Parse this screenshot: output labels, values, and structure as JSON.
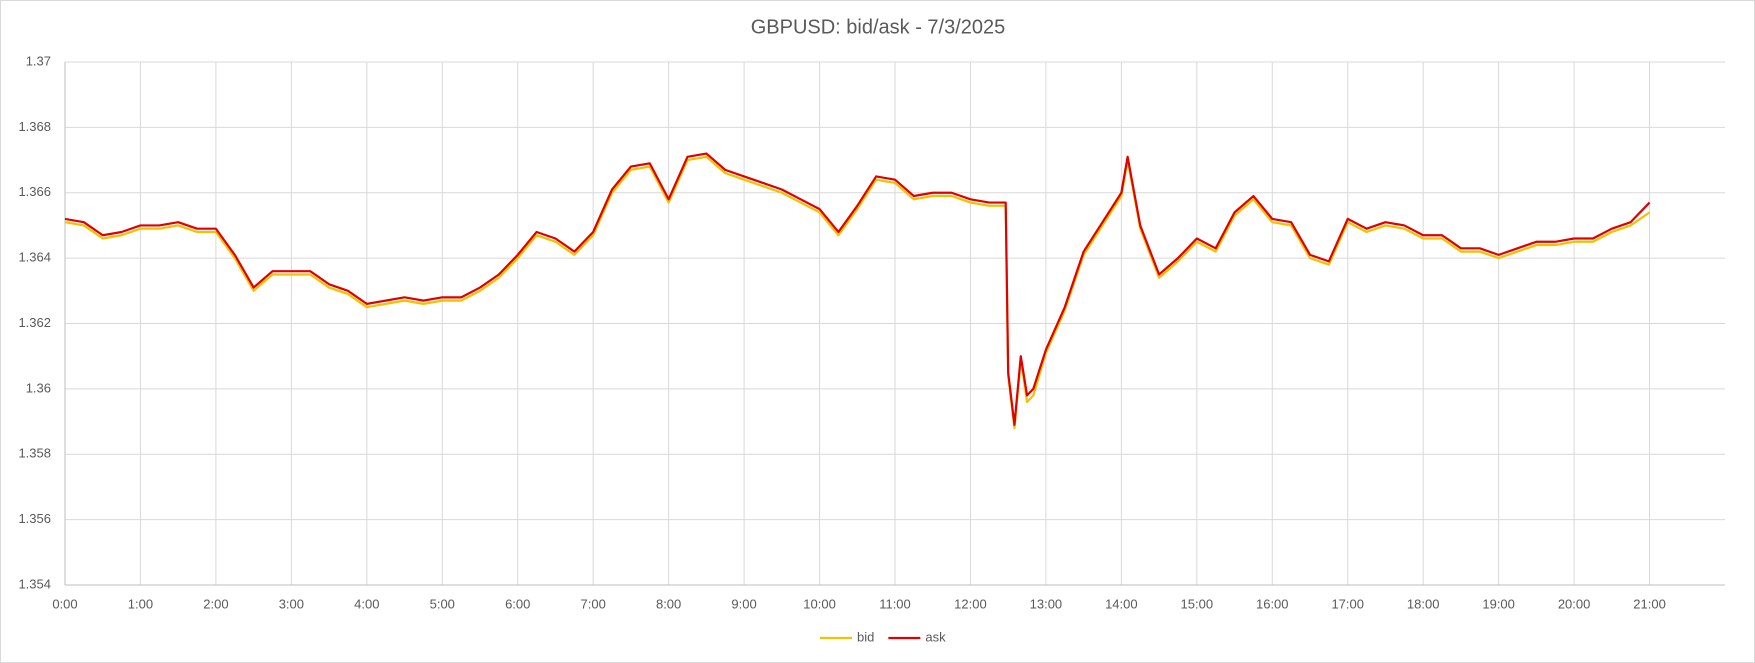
{
  "chart_data": {
    "type": "line",
    "title": "GBPUSD: bid/ask - 7/3/2025",
    "x": [
      0,
      0.25,
      0.5,
      0.75,
      1,
      1.25,
      1.5,
      1.75,
      2,
      2.25,
      2.5,
      2.75,
      3,
      3.25,
      3.5,
      3.75,
      4,
      4.25,
      4.5,
      4.75,
      5,
      5.25,
      5.5,
      5.75,
      6,
      6.25,
      6.5,
      6.75,
      7,
      7.25,
      7.5,
      7.75,
      8,
      8.25,
      8.5,
      8.75,
      9,
      9.25,
      9.5,
      9.75,
      10,
      10.25,
      10.5,
      10.75,
      11,
      11.25,
      11.5,
      11.75,
      12,
      12.25,
      12.467,
      12.5,
      12.583,
      12.667,
      12.75,
      12.833,
      13,
      13.25,
      13.5,
      13.75,
      14,
      14.083,
      14.25,
      14.5,
      14.75,
      15,
      15.25,
      15.5,
      15.75,
      16,
      16.25,
      16.5,
      16.75,
      17,
      17.25,
      17.5,
      17.75,
      18,
      18.25,
      18.5,
      18.75,
      19,
      19.25,
      19.5,
      19.75,
      20,
      20.25,
      20.5,
      20.75,
      21
    ],
    "series": [
      {
        "name": "bid",
        "color": "#f2c200",
        "values": [
          1.3651,
          1.365,
          1.3646,
          1.3647,
          1.3649,
          1.3649,
          1.365,
          1.3648,
          1.3648,
          1.364,
          1.363,
          1.3635,
          1.3635,
          1.3635,
          1.3631,
          1.3629,
          1.3625,
          1.3626,
          1.3627,
          1.3626,
          1.3627,
          1.3627,
          1.363,
          1.3634,
          1.364,
          1.3647,
          1.3645,
          1.3641,
          1.3647,
          1.366,
          1.3667,
          1.3668,
          1.3657,
          1.367,
          1.3671,
          1.3666,
          1.3664,
          1.3662,
          1.366,
          1.3657,
          1.3654,
          1.3647,
          1.3655,
          1.3664,
          1.3663,
          1.3658,
          1.3659,
          1.3659,
          1.3657,
          1.3656,
          1.3656,
          1.3604,
          1.3588,
          1.3609,
          1.3596,
          1.3598,
          1.3611,
          1.3624,
          1.3641,
          1.365,
          1.3659,
          1.367,
          1.3649,
          1.3634,
          1.3639,
          1.3645,
          1.3642,
          1.3653,
          1.3658,
          1.3651,
          1.365,
          1.364,
          1.3638,
          1.3651,
          1.3648,
          1.365,
          1.3649,
          1.3646,
          1.3646,
          1.3642,
          1.3642,
          1.364,
          1.3642,
          1.3644,
          1.3644,
          1.3645,
          1.3645,
          1.3648,
          1.365,
          1.3654
        ]
      },
      {
        "name": "ask",
        "color": "#e00000",
        "values": [
          1.3652,
          1.3651,
          1.3647,
          1.3648,
          1.365,
          1.365,
          1.3651,
          1.3649,
          1.3649,
          1.3641,
          1.3631,
          1.3636,
          1.3636,
          1.3636,
          1.3632,
          1.363,
          1.3626,
          1.3627,
          1.3628,
          1.3627,
          1.3628,
          1.3628,
          1.3631,
          1.3635,
          1.3641,
          1.3648,
          1.3646,
          1.3642,
          1.3648,
          1.3661,
          1.3668,
          1.3669,
          1.3658,
          1.3671,
          1.3672,
          1.3667,
          1.3665,
          1.3663,
          1.3661,
          1.3658,
          1.3655,
          1.3648,
          1.3656,
          1.3665,
          1.3664,
          1.3659,
          1.366,
          1.366,
          1.3658,
          1.3657,
          1.3657,
          1.3605,
          1.3589,
          1.361,
          1.3598,
          1.36,
          1.3612,
          1.3625,
          1.3642,
          1.3651,
          1.366,
          1.3671,
          1.365,
          1.3635,
          1.364,
          1.3646,
          1.3643,
          1.3654,
          1.3659,
          1.3652,
          1.3651,
          1.3641,
          1.3639,
          1.3652,
          1.3649,
          1.3651,
          1.365,
          1.3647,
          1.3647,
          1.3643,
          1.3643,
          1.3641,
          1.3643,
          1.3645,
          1.3645,
          1.3646,
          1.3646,
          1.3649,
          1.3651,
          1.3657
        ]
      }
    ],
    "xlim": [
      0,
      22
    ],
    "xticks": [
      {
        "value": 0,
        "label": "0:00"
      },
      {
        "value": 1,
        "label": "1:00"
      },
      {
        "value": 2,
        "label": "2:00"
      },
      {
        "value": 3,
        "label": "3:00"
      },
      {
        "value": 4,
        "label": "4:00"
      },
      {
        "value": 5,
        "label": "5:00"
      },
      {
        "value": 6,
        "label": "6:00"
      },
      {
        "value": 7,
        "label": "7:00"
      },
      {
        "value": 8,
        "label": "8:00"
      },
      {
        "value": 9,
        "label": "9:00"
      },
      {
        "value": 10,
        "label": "10:00"
      },
      {
        "value": 11,
        "label": "11:00"
      },
      {
        "value": 12,
        "label": "12:00"
      },
      {
        "value": 13,
        "label": "13:00"
      },
      {
        "value": 14,
        "label": "14:00"
      },
      {
        "value": 15,
        "label": "15:00"
      },
      {
        "value": 16,
        "label": "16:00"
      },
      {
        "value": 17,
        "label": "17:00"
      },
      {
        "value": 18,
        "label": "18:00"
      },
      {
        "value": 19,
        "label": "19:00"
      },
      {
        "value": 20,
        "label": "20:00"
      },
      {
        "value": 21,
        "label": "21:00"
      }
    ],
    "ylim": [
      1.354,
      1.37
    ],
    "yticks": [
      1.354,
      1.356,
      1.358,
      1.36,
      1.362,
      1.364,
      1.366,
      1.368,
      1.37
    ],
    "grid": true,
    "legend": "bottom"
  }
}
